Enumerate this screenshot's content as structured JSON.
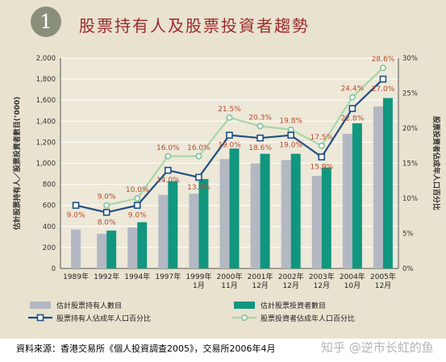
{
  "header": {
    "number": "1",
    "title": "股票持有人及股票投資者趨勢"
  },
  "source": "資料來源：香港交易所《個人投資調查2005》，交易所2006年4月",
  "watermark": "知乎 @逆市长虹的鱼",
  "colors": {
    "holders_bar": "#b3b8c3",
    "investors_bar": "#11967f",
    "holders_line": "#1d4f82",
    "investors_line": "#a9d6a6",
    "investors_marker": "#7fc39b",
    "pct_label": "#b84a2a",
    "background": "#e8e2cf"
  },
  "chart_data": {
    "type": "bar",
    "categories": [
      {
        "l1": "1989年",
        "l2": ""
      },
      {
        "l1": "1992年",
        "l2": ""
      },
      {
        "l1": "1994年",
        "l2": ""
      },
      {
        "l1": "1997年",
        "l2": ""
      },
      {
        "l1": "1999年",
        "l2": "1月"
      },
      {
        "l1": "2000年",
        "l2": "11月"
      },
      {
        "l1": "2001年",
        "l2": "12月"
      },
      {
        "l1": "2002年",
        "l2": "12月"
      },
      {
        "l1": "2003年",
        "l2": "12月"
      },
      {
        "l1": "2004年",
        "l2": "10月"
      },
      {
        "l1": "2005年",
        "l2": "12月"
      }
    ],
    "ylabel": "估計股票持有人／股票投資者數目(’000)",
    "y2label": "股票投資者佔成年人口百分比",
    "ylim": [
      0,
      2000
    ],
    "yticks": [
      "0",
      "200",
      "400",
      "600",
      "800",
      "1,000",
      "1,200",
      "1,400",
      "1,600",
      "1,800",
      "2,000"
    ],
    "y2lim": [
      0,
      30
    ],
    "y2ticks": [
      "0%",
      "5%",
      "10%",
      "15%",
      "20%",
      "25%",
      "30%"
    ],
    "series": [
      {
        "name": "估計股票持有人數目",
        "kind": "bar",
        "values": [
          370,
          330,
          390,
          700,
          710,
          1040,
          1000,
          1030,
          880,
          1280,
          1540
        ]
      },
      {
        "name": "估計股票投資者數目",
        "kind": "bar",
        "values": [
          null,
          360,
          440,
          830,
          850,
          1140,
          1090,
          1090,
          960,
          1380,
          1620
        ]
      },
      {
        "name": "股票持有人佔成年人口百分比",
        "kind": "line",
        "axis": "y2",
        "values": [
          9.0,
          8.0,
          9.0,
          14.0,
          13.0,
          19.0,
          18.6,
          19.0,
          15.9,
          22.8,
          27.0
        ],
        "labels": [
          "9.0%",
          "8.0%",
          "9.0%",
          "14.0%",
          "13.0%",
          "19.0%",
          "18.6%",
          "19.0%",
          "15.9%",
          "22.8%",
          "27.0%"
        ]
      },
      {
        "name": "股票投資者佔成年人口百分比",
        "kind": "line",
        "axis": "y2",
        "values": [
          null,
          9.0,
          10.0,
          16.0,
          16.0,
          21.5,
          20.3,
          19.8,
          17.5,
          24.4,
          28.6
        ],
        "labels": [
          "",
          "9.0%",
          "10.0%",
          "16.0%",
          "16.0%",
          "21.5%",
          "20.3%",
          "19.8%",
          "17.5%",
          "24.4%",
          "28.6%"
        ]
      }
    ]
  }
}
